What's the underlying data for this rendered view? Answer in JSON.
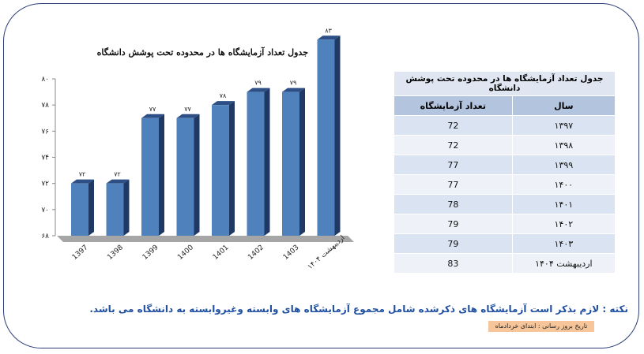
{
  "chart_data": {
    "type": "bar",
    "title": "جدول تعداد آزمایشگاه ها در محدوده  تحت پوشش دانشگاه",
    "categories": [
      "1397",
      "1398",
      "1399",
      "1400",
      "1401",
      "1402",
      "1403",
      "اردیبهشت ۱۴۰۴"
    ],
    "values": [
      72,
      72,
      77,
      77,
      78,
      79,
      79,
      83
    ],
    "value_labels": [
      "۷۲",
      "۷۲",
      "۷۷",
      "۷۷",
      "۷۸",
      "۷۹",
      "۷۹",
      "۸۳"
    ],
    "ylim": [
      68,
      80
    ],
    "y_ticks": [
      {
        "value": 80,
        "label": "۸۰"
      },
      {
        "value": 78,
        "label": "۷۸"
      },
      {
        "value": 76,
        "label": "۷۶"
      },
      {
        "value": 74,
        "label": "۷۴"
      },
      {
        "value": 72,
        "label": "۷۲"
      },
      {
        "value": 70,
        "label": "۷۰"
      },
      {
        "value": 68,
        "label": "۶۸"
      }
    ],
    "grid": false,
    "colors": {
      "bar_front": "#4f81bd",
      "bar_side": "#1f3864",
      "floor": "#a6a6a6"
    }
  },
  "table": {
    "title": "جدول تعداد آزمایشگاه ها در محدوده تحت پوشش دانشگاه",
    "headers": {
      "year": "سال",
      "count": "تعداد آزمایشگاه"
    },
    "rows": [
      {
        "year": "۱۳۹۷",
        "count": "72"
      },
      {
        "year": "۱۳۹۸",
        "count": "72"
      },
      {
        "year": "۱۳۹۹",
        "count": "77"
      },
      {
        "year": "۱۴۰۰",
        "count": "77"
      },
      {
        "year": "۱۴۰۱",
        "count": "78"
      },
      {
        "year": "۱۴۰۲",
        "count": "79"
      },
      {
        "year": "۱۴۰۳",
        "count": "79"
      },
      {
        "year": "اردیبهشت ۱۴۰۴",
        "count": "83"
      }
    ]
  },
  "note": "نکته : لازم بذکر است آزمایشگاه های ذکرشده شامل مجموع آزمایشگاه های وابسته وغیروابسته به دانشگاه می باشد.",
  "update_badge": "تاریخ بروز رسانی : ابتدای   خردادماه"
}
